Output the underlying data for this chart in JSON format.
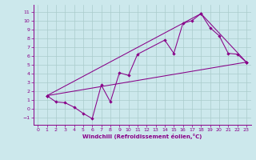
{
  "xlabel": "Windchill (Refroidissement éolien,°C)",
  "bg_color": "#cce8ec",
  "line_color": "#880088",
  "grid_color": "#aacccc",
  "xlim": [
    -0.5,
    23.5
  ],
  "ylim": [
    -1.8,
    11.8
  ],
  "xticks": [
    0,
    1,
    2,
    3,
    4,
    5,
    6,
    7,
    8,
    9,
    10,
    11,
    12,
    13,
    14,
    15,
    16,
    17,
    18,
    19,
    20,
    21,
    22,
    23
  ],
  "yticks": [
    -1,
    0,
    1,
    2,
    3,
    4,
    5,
    6,
    7,
    8,
    9,
    10,
    11
  ],
  "series": [
    [
      1,
      1.5
    ],
    [
      2,
      0.8
    ],
    [
      3,
      0.7
    ],
    [
      4,
      0.2
    ],
    [
      5,
      -0.5
    ],
    [
      6,
      -1.1
    ],
    [
      7,
      2.7
    ],
    [
      8,
      0.8
    ],
    [
      9,
      4.1
    ],
    [
      10,
      3.8
    ],
    [
      11,
      6.2
    ],
    [
      14,
      7.8
    ],
    [
      15,
      6.3
    ],
    [
      16,
      9.7
    ],
    [
      17,
      10.0
    ],
    [
      18,
      10.8
    ],
    [
      19,
      9.2
    ],
    [
      20,
      8.3
    ],
    [
      21,
      6.3
    ],
    [
      22,
      6.2
    ],
    [
      23,
      5.3
    ]
  ],
  "line_straight": [
    [
      1,
      1.5
    ],
    [
      23,
      5.3
    ]
  ],
  "line_triangle": [
    [
      1,
      1.5
    ],
    [
      18,
      10.8
    ],
    [
      23,
      5.3
    ]
  ],
  "tick_fontsize": 4.5,
  "xlabel_fontsize": 5.0,
  "lw": 0.75,
  "ms": 2.2
}
